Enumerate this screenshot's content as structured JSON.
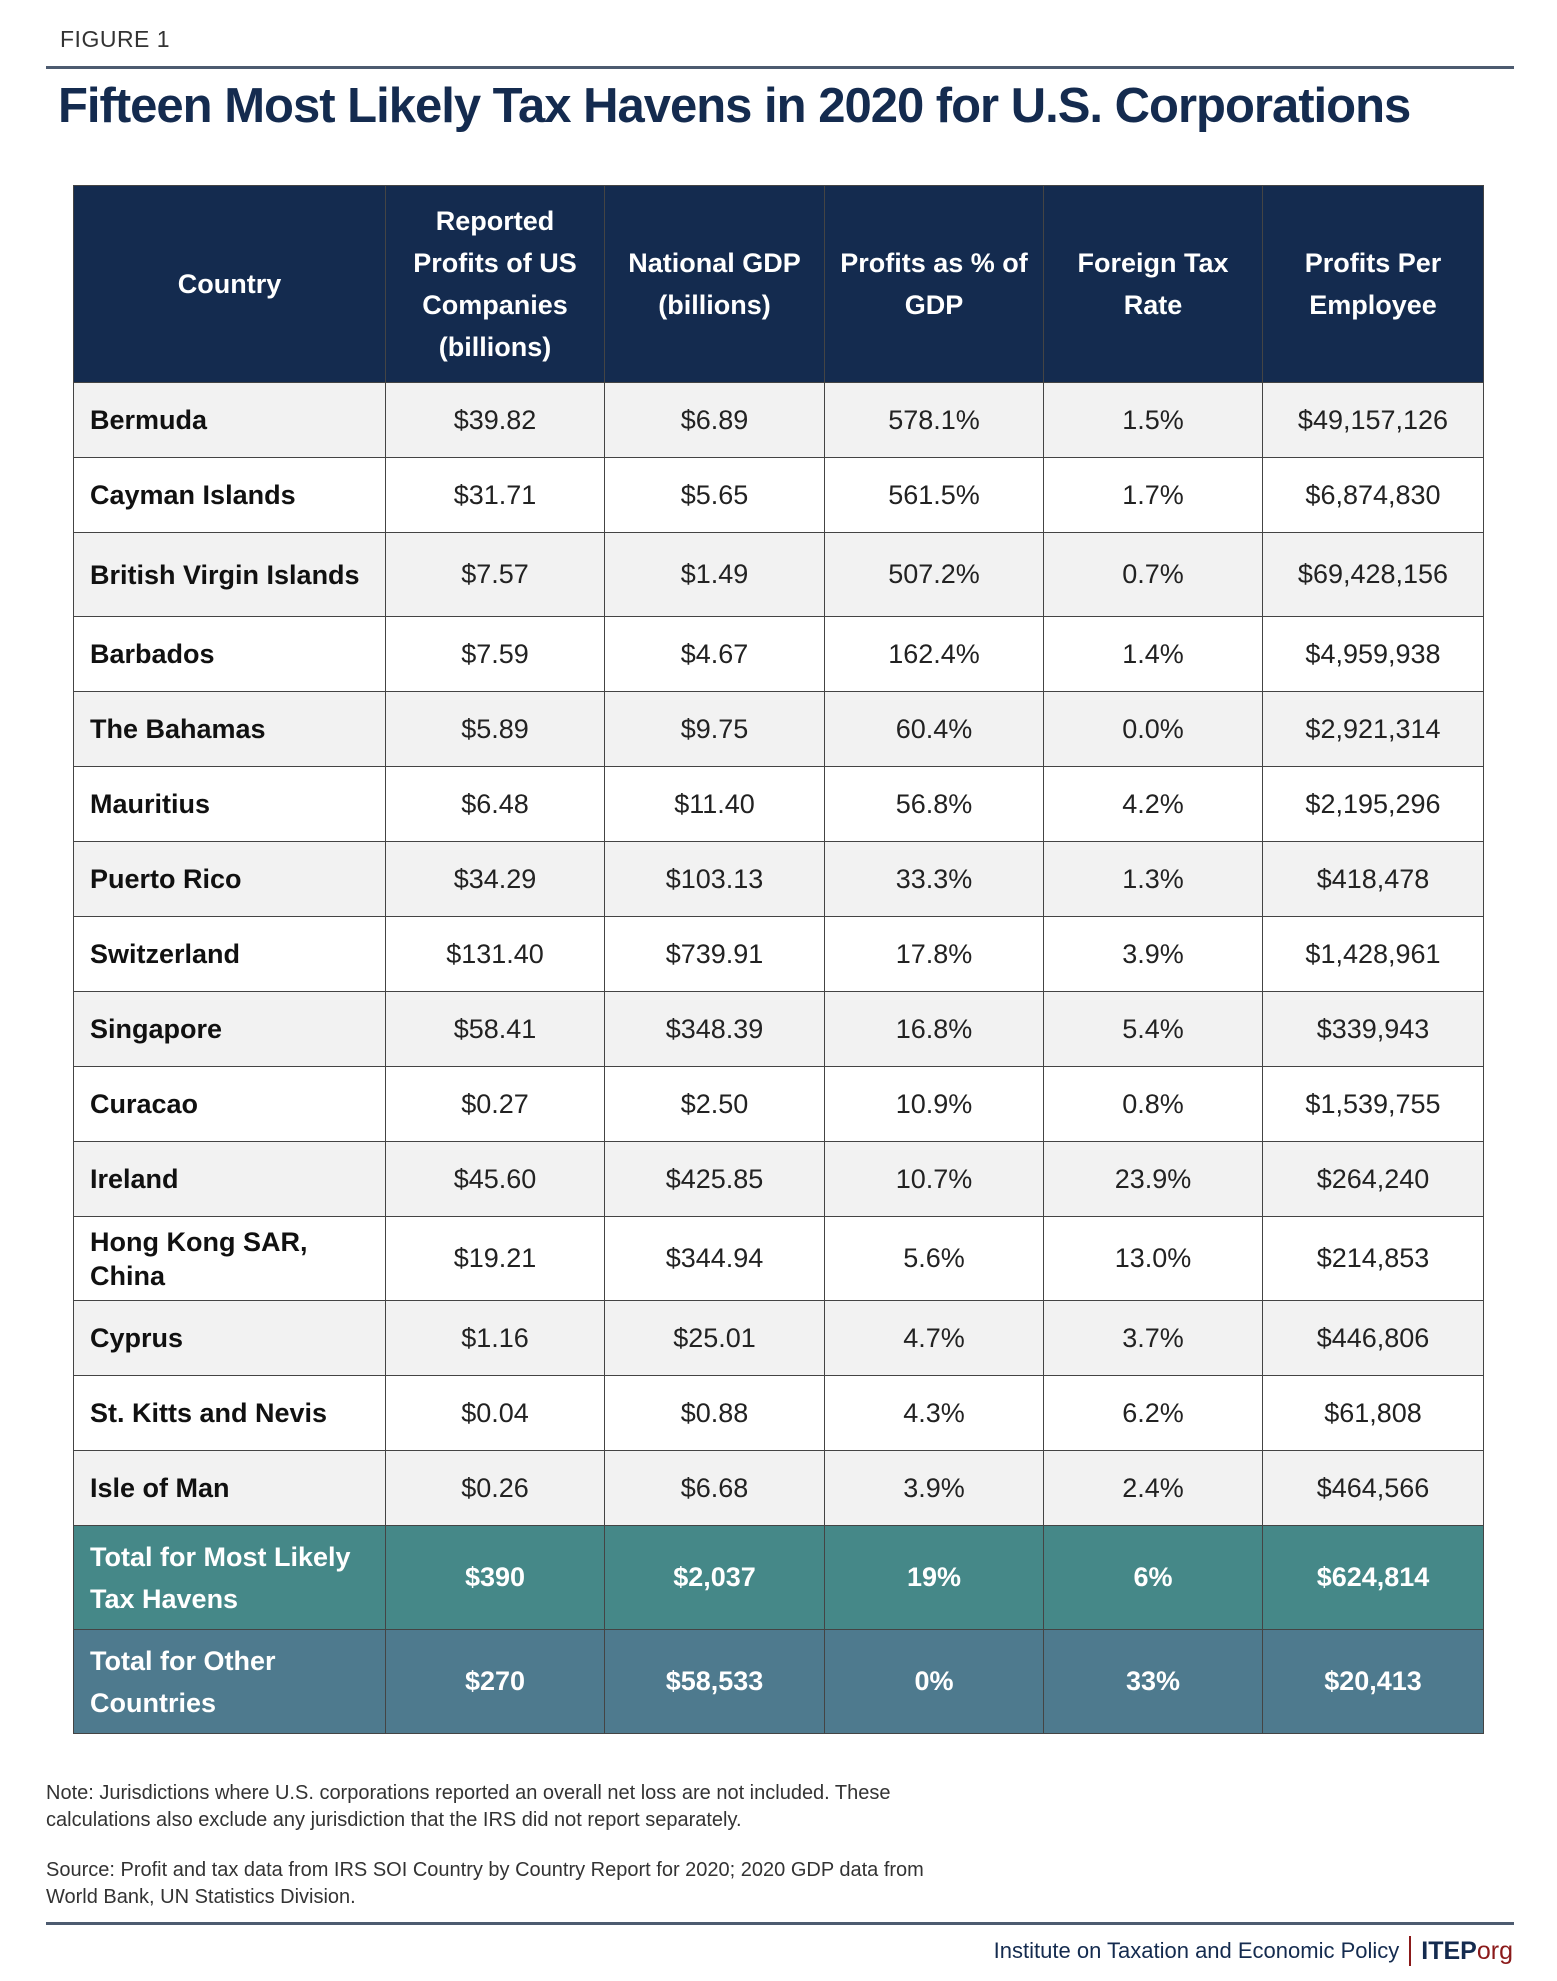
{
  "figure_label": "FIGURE 1",
  "title": "Fifteen Most Likely Tax Havens in 2020 for U.S. Corporations",
  "table": {
    "headers": [
      "Country",
      "Reported Profits of US Companies (billions)",
      "National GDP (billions)",
      "Profits as % of GDP",
      "Foreign Tax Rate",
      "Profits Per Employee"
    ],
    "rows": [
      [
        "Bermuda",
        "$39.82",
        "$6.89",
        "578.1%",
        "1.5%",
        "$49,157,126"
      ],
      [
        "Cayman Islands",
        "$31.71",
        "$5.65",
        "561.5%",
        "1.7%",
        "$6,874,830"
      ],
      [
        "British Virgin Islands",
        "$7.57",
        "$1.49",
        "507.2%",
        "0.7%",
        "$69,428,156"
      ],
      [
        "Barbados",
        "$7.59",
        "$4.67",
        "162.4%",
        "1.4%",
        "$4,959,938"
      ],
      [
        "The Bahamas",
        "$5.89",
        "$9.75",
        "60.4%",
        "0.0%",
        "$2,921,314"
      ],
      [
        "Mauritius",
        "$6.48",
        "$11.40",
        "56.8%",
        "4.2%",
        "$2,195,296"
      ],
      [
        "Puerto Rico",
        "$34.29",
        "$103.13",
        "33.3%",
        "1.3%",
        "$418,478"
      ],
      [
        "Switzerland",
        "$131.40",
        "$739.91",
        "17.8%",
        "3.9%",
        "$1,428,961"
      ],
      [
        "Singapore",
        "$58.41",
        "$348.39",
        "16.8%",
        "5.4%",
        "$339,943"
      ],
      [
        "Curacao",
        "$0.27",
        "$2.50",
        "10.9%",
        "0.8%",
        "$1,539,755"
      ],
      [
        "Ireland",
        "$45.60",
        "$425.85",
        "10.7%",
        "23.9%",
        "$264,240"
      ],
      [
        "Hong Kong SAR, China",
        "$19.21",
        "$344.94",
        "5.6%",
        "13.0%",
        "$214,853"
      ],
      [
        "Cyprus",
        "$1.16",
        "$25.01",
        "4.7%",
        "3.7%",
        "$446,806"
      ],
      [
        "St. Kitts and Nevis",
        "$0.04",
        "$0.88",
        "4.3%",
        "6.2%",
        "$61,808"
      ],
      [
        "Isle of Man",
        "$0.26",
        "$6.68",
        "3.9%",
        "2.4%",
        "$464,566"
      ]
    ],
    "totals": [
      [
        "Total for Most Likely Tax Havens",
        "$390",
        "$2,037",
        "19%",
        "6%",
        "$624,814"
      ],
      [
        "Total for Other Countries",
        "$270",
        "$58,533",
        "0%",
        "33%",
        "$20,413"
      ]
    ]
  },
  "note": "Note: Jurisdictions where U.S. corporations reported an overall net loss are not included. These calculations also exclude any jurisdiction that the IRS did not report separately.",
  "source": "Source: Profit and tax data from IRS SOI Country by Country Report for 2020; 2020 GDP data from World Bank, UN Statistics Division.",
  "footer": {
    "org_name": "Institute on Taxation and Economic Policy",
    "logo_main": "ITEP",
    "logo_suffix": "org"
  },
  "colors": {
    "navy": "#142b4f",
    "teal": "#458888",
    "slate": "#4e7a8e",
    "red": "#8b1a1a"
  }
}
